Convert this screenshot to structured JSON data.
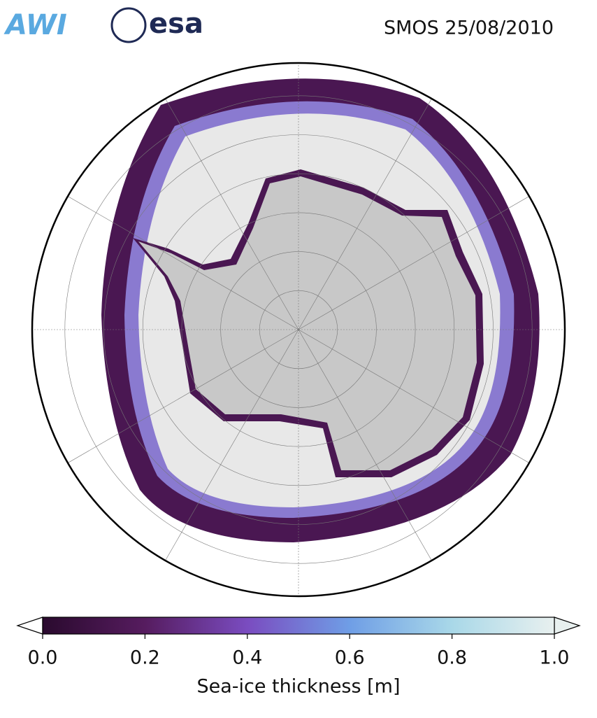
{
  "header": {
    "logos": [
      "AWI",
      "esa"
    ],
    "title": "SMOS 25/08/2010"
  },
  "colorbar": {
    "label": "Sea-ice thickness [m]",
    "lim": [
      0,
      1
    ],
    "ticks": [
      {
        "value": 0,
        "label": "0.0"
      },
      {
        "value": 0.2,
        "label": "0.2"
      },
      {
        "value": 0.4,
        "label": "0.4"
      },
      {
        "value": 0.6,
        "label": "0.6"
      },
      {
        "value": 0.8,
        "label": "0.8"
      },
      {
        "value": 1,
        "label": "1.0"
      }
    ],
    "colors": [
      "#2a0a2e",
      "#561c5f",
      "#7a4cc0",
      "#6f9ee6",
      "#a9d8e8",
      "#e8f0ef"
    ]
  }
}
